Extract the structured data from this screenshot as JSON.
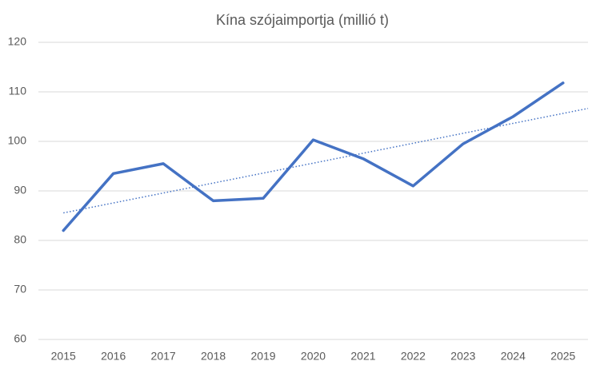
{
  "chart_data": {
    "type": "line",
    "title": "Kína szójaimportja (millió t)",
    "categories": [
      "2015",
      "2016",
      "2017",
      "2018",
      "2019",
      "2020",
      "2021",
      "2022",
      "2023",
      "2024",
      "2025"
    ],
    "series": [
      {
        "color": "#4472c4",
        "values": [
          82,
          93.5,
          95.5,
          88,
          88.5,
          100.3,
          96.5,
          91,
          99.5,
          105,
          111.8
        ]
      }
    ],
    "trendline": "linear",
    "ylim": [
      60,
      120
    ],
    "yticks": [
      60,
      70,
      80,
      90,
      100,
      110,
      120
    ],
    "grid": true
  }
}
